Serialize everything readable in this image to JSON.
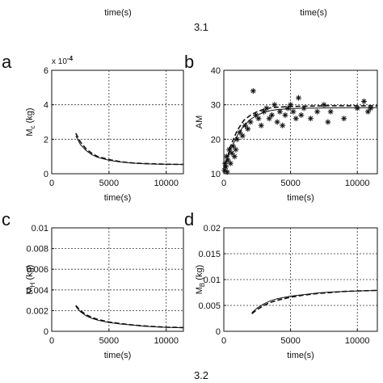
{
  "header": {
    "left_xlabel": "time(s)",
    "right_xlabel": "time(s)",
    "section_top": "3.1",
    "section_bottom": "3.2"
  },
  "chart_data": [
    {
      "panel": "a",
      "type": "line",
      "ylabel_main": "M",
      "ylabel_sub": "c",
      "ylabel_unit": " (kg)",
      "xlabel": "time(s)",
      "xlim": [
        0,
        11500
      ],
      "ylim": [
        0,
        6
      ],
      "exponent": "x 10",
      "exponent_power": "-4",
      "xticks": [
        0,
        5000,
        10000
      ],
      "xtick_labels": [
        "0",
        "5000",
        "10000"
      ],
      "yticks": [
        0,
        2,
        4,
        6
      ],
      "ytick_labels": [
        "0",
        "2",
        "4",
        "6"
      ],
      "grid": true,
      "series": [
        {
          "style": "solid",
          "x": [
            2100,
            2500,
            3000,
            3500,
            4000,
            5000,
            6000,
            7000,
            8000,
            9000,
            10000,
            11500
          ],
          "y": [
            2.2,
            1.7,
            1.35,
            1.1,
            0.95,
            0.78,
            0.68,
            0.62,
            0.58,
            0.56,
            0.55,
            0.54
          ]
        },
        {
          "style": "dashed",
          "x": [
            2100,
            2500,
            3000,
            3500,
            4000,
            5000,
            6000,
            7000,
            8000,
            9000,
            10000,
            11500
          ],
          "y": [
            2.35,
            1.85,
            1.45,
            1.18,
            1.0,
            0.82,
            0.7,
            0.63,
            0.59,
            0.57,
            0.55,
            0.54
          ]
        }
      ]
    },
    {
      "panel": "b",
      "type": "scatter",
      "ylabel_main": "AM",
      "ylabel_sub": "",
      "ylabel_unit": "",
      "xlabel": "time(s)",
      "xlim": [
        0,
        11500
      ],
      "ylim": [
        10,
        40
      ],
      "xticks": [
        0,
        5000,
        10000
      ],
      "xtick_labels": [
        "0",
        "5000",
        "10000"
      ],
      "yticks": [
        10,
        20,
        30,
        40
      ],
      "ytick_labels": [
        "10",
        "20",
        "30",
        "40"
      ],
      "grid": true,
      "points": {
        "x": [
          50,
          100,
          150,
          200,
          250,
          300,
          400,
          500,
          600,
          700,
          800,
          900,
          1000,
          1200,
          1400,
          1600,
          1800,
          2000,
          2200,
          2400,
          2600,
          2800,
          3000,
          3200,
          3400,
          3600,
          3800,
          4000,
          4200,
          4400,
          4600,
          4800,
          5000,
          5200,
          5400,
          5600,
          5800,
          6000,
          6500,
          7000,
          7500,
          7800,
          8000,
          9000,
          10000,
          10500,
          10800,
          11000
        ],
        "y": [
          11,
          13,
          12,
          15,
          10.5,
          14,
          17,
          13,
          16,
          18,
          15,
          17,
          20,
          22,
          21,
          24,
          23,
          25,
          34,
          27,
          26,
          24,
          28,
          29,
          26,
          27,
          30,
          25,
          28,
          24,
          27,
          29,
          30,
          28,
          26,
          32,
          27,
          29,
          26,
          28,
          30,
          25,
          28,
          26,
          29,
          31,
          28,
          29
        ]
      },
      "series": [
        {
          "style": "solid",
          "x": [
            0,
            500,
            1000,
            1500,
            2000,
            2500,
            3000,
            3500,
            4000,
            5000,
            6000,
            8000,
            11500
          ],
          "y": [
            11,
            17,
            21,
            24,
            25.8,
            27,
            27.8,
            28.3,
            28.6,
            28.9,
            29,
            29.1,
            29.2
          ]
        },
        {
          "style": "dashed",
          "x": [
            0,
            500,
            1000,
            1500,
            2000,
            2500,
            3000,
            3500,
            4000,
            5000,
            6000,
            8000,
            11500
          ],
          "y": [
            11,
            18,
            22.5,
            25.5,
            27,
            28,
            28.7,
            29.1,
            29.3,
            29.5,
            29.6,
            29.7,
            29.7
          ]
        }
      ]
    },
    {
      "panel": "c",
      "type": "line",
      "ylabel_main": "M",
      "ylabel_sub": "H",
      "ylabel_unit": " (kg)",
      "xlabel": "time(s)",
      "xlim": [
        0,
        11500
      ],
      "ylim": [
        0,
        0.01
      ],
      "xticks": [
        0,
        5000,
        10000
      ],
      "xtick_labels": [
        "0",
        "5000",
        "10000"
      ],
      "yticks": [
        0,
        0.002,
        0.004,
        0.006,
        0.008,
        0.01
      ],
      "ytick_labels": [
        "0",
        "0.002",
        "0.004",
        "0.006",
        "0.008",
        "0.01"
      ],
      "grid": true,
      "series": [
        {
          "style": "solid",
          "x": [
            2100,
            2500,
            3000,
            3500,
            4000,
            5000,
            6000,
            7000,
            8000,
            9000,
            10000,
            11500
          ],
          "y": [
            0.0024,
            0.0019,
            0.0015,
            0.00125,
            0.00108,
            0.00085,
            0.0007,
            0.0006,
            0.0005,
            0.00043,
            0.00038,
            0.00034
          ]
        },
        {
          "style": "dashed",
          "x": [
            2100,
            2500,
            3000,
            3500,
            4000,
            5000,
            6000,
            7000,
            8000,
            9000,
            10000,
            11500
          ],
          "y": [
            0.0025,
            0.002,
            0.0016,
            0.00135,
            0.00115,
            0.0009,
            0.00074,
            0.00062,
            0.00052,
            0.00045,
            0.0004,
            0.00036
          ]
        }
      ]
    },
    {
      "panel": "d",
      "type": "line",
      "ylabel_main": "M",
      "ylabel_sub": "B",
      "ylabel_unit": " (kg)",
      "xlabel": "time(s)",
      "xlim": [
        0,
        11500
      ],
      "ylim": [
        0,
        0.02
      ],
      "xticks": [
        0,
        5000,
        10000
      ],
      "xtick_labels": [
        "0",
        "5000",
        "10000"
      ],
      "yticks": [
        0,
        0.005,
        0.01,
        0.015,
        0.02
      ],
      "ytick_labels": [
        "0",
        "0.005",
        "0.01",
        "0.015",
        "0.02"
      ],
      "grid": true,
      "series": [
        {
          "style": "solid",
          "x": [
            2100,
            2500,
            3000,
            3500,
            4000,
            5000,
            6000,
            7000,
            8000,
            9000,
            10000,
            11500
          ],
          "y": [
            0.0036,
            0.0045,
            0.0053,
            0.0059,
            0.0063,
            0.0068,
            0.0071,
            0.0074,
            0.0076,
            0.0077,
            0.0078,
            0.0079
          ]
        },
        {
          "style": "dashed",
          "x": [
            2100,
            2500,
            3000,
            3500,
            4000,
            5000,
            6000,
            7000,
            8000,
            9000,
            10000,
            11500
          ],
          "y": [
            0.0034,
            0.0042,
            0.005,
            0.0056,
            0.006,
            0.0066,
            0.007,
            0.0073,
            0.0075,
            0.0077,
            0.0078,
            0.0079
          ]
        }
      ]
    }
  ]
}
